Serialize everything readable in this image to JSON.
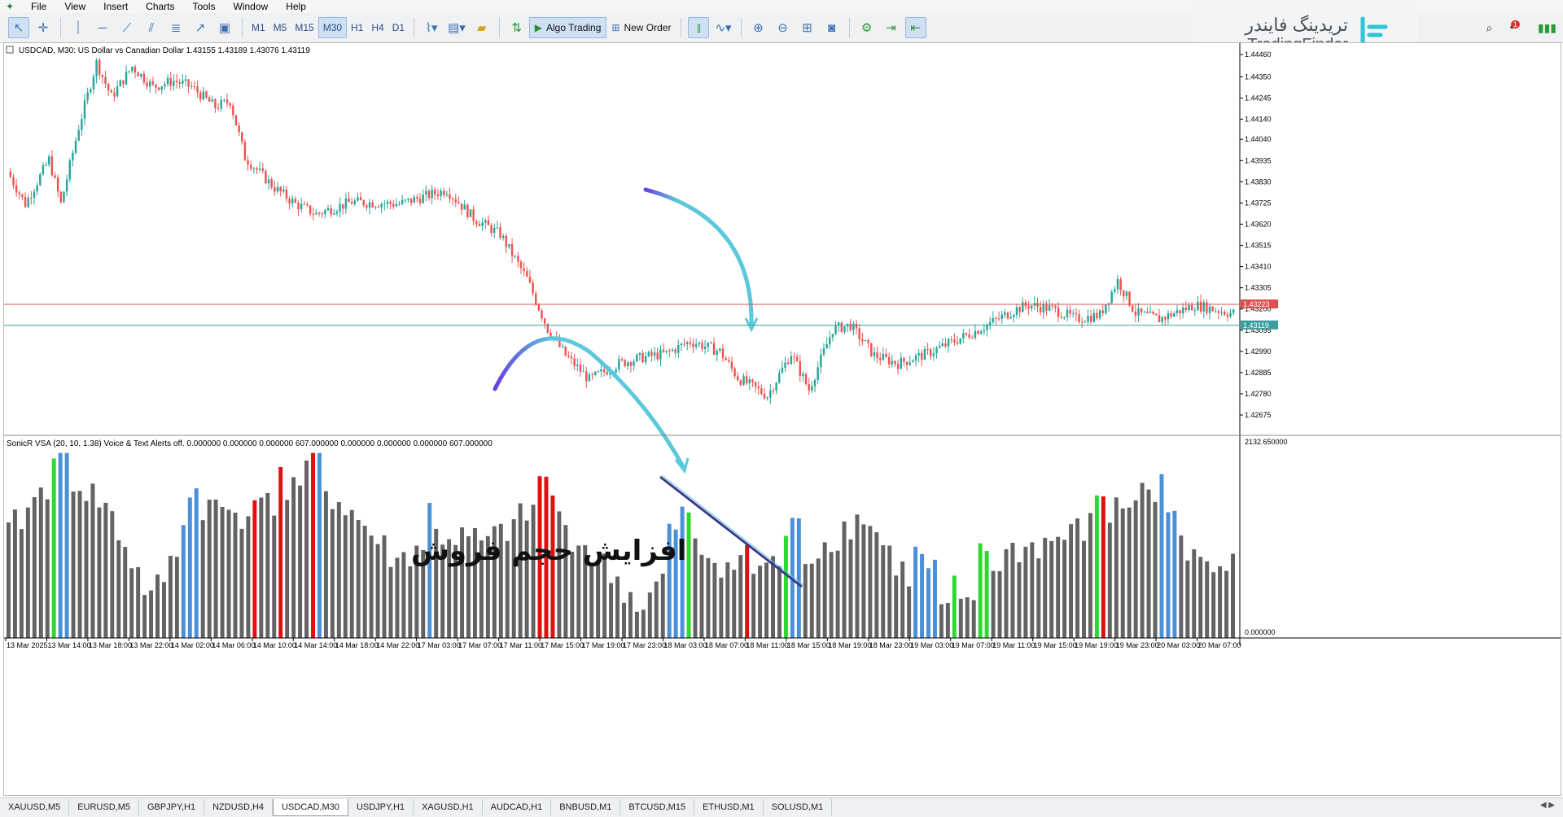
{
  "menu": [
    "File",
    "View",
    "Insert",
    "Charts",
    "Tools",
    "Window",
    "Help"
  ],
  "toolbar": {
    "timeframes": [
      "M1",
      "M5",
      "M15",
      "M30",
      "H1",
      "H4",
      "D1"
    ],
    "active_timeframe": "M30",
    "algo_trading_label": "Algo Trading",
    "new_order_label": "New Order",
    "notification_count": "1"
  },
  "logo": {
    "fa": "تریدینگ فایندر",
    "en": "TradingFinder"
  },
  "chart": {
    "title": "USDCAD, M30:  US Dollar vs Canadian Dollar  1.43155 1.43189 1.43076 1.43119",
    "price_labels": [
      "1.44460",
      "1.44350",
      "1.44245",
      "1.44140",
      "1.44040",
      "1.43935",
      "1.43830",
      "1.43725",
      "1.43620",
      "1.43515",
      "1.43410",
      "1.43305",
      "1.43200",
      "1.43095",
      "1.42990",
      "1.42885",
      "1.42780",
      "1.42675"
    ],
    "ask_line_price": "1.43223",
    "bid_line_price": "1.43119",
    "time_labels": [
      "13 Mar 2025",
      "13 Mar 14:00",
      "13 Mar 18:00",
      "13 Mar 22:00",
      "14 Mar 02:00",
      "14 Mar 06:00",
      "14 Mar 10:00",
      "14 Mar 14:00",
      "14 Mar 18:00",
      "14 Mar 22:00",
      "17 Mar 03:00",
      "17 Mar 07:00",
      "17 Mar 11:00",
      "17 Mar 15:00",
      "17 Mar 19:00",
      "17 Mar 23:00",
      "18 Mar 03:00",
      "18 Mar 07:00",
      "18 Mar 11:00",
      "18 Mar 15:00",
      "18 Mar 19:00",
      "18 Mar 23:00",
      "19 Mar 03:00",
      "19 Mar 07:00",
      "19 Mar 11:00",
      "19 Mar 15:00",
      "19 Mar 19:00",
      "19 Mar 23:00",
      "20 Mar 03:00",
      "20 Mar 07:00"
    ],
    "colors": {
      "bull": "#26a69a",
      "bear": "#ef5350",
      "vol_neutral": "#636363",
      "vol_blue": "#4a90d9",
      "vol_red": "#e01010",
      "vol_green": "#2ed82e",
      "bid_line": "#3a9ea0",
      "ask_line": "#e05050",
      "arrow": "#5bc8dc"
    }
  },
  "indicator": {
    "label": "SonicR VSA (20, 10, 1.38) Voice & Text Alerts off.  0.000000 0.000000 0.000000 607.000000 0.000000 0.000000 0.000000 607.000000",
    "scale_top": "2132.650000",
    "scale_bottom": "0.000000"
  },
  "annotation": {
    "text": "افزایش حجم فروش"
  },
  "tabs": [
    "XAUUSD,M5",
    "EURUSD,M5",
    "GBPJPY,H1",
    "NZDUSD,H4",
    "USDCAD,M30",
    "USDJPY,H1",
    "XAGUSD,H1",
    "AUDCAD,H1",
    "BNBUSD,M1",
    "BTCUSD,M15",
    "ETHUSD,M1",
    "SOLUSD,M1"
  ],
  "active_tab": "USDCAD,M30"
}
